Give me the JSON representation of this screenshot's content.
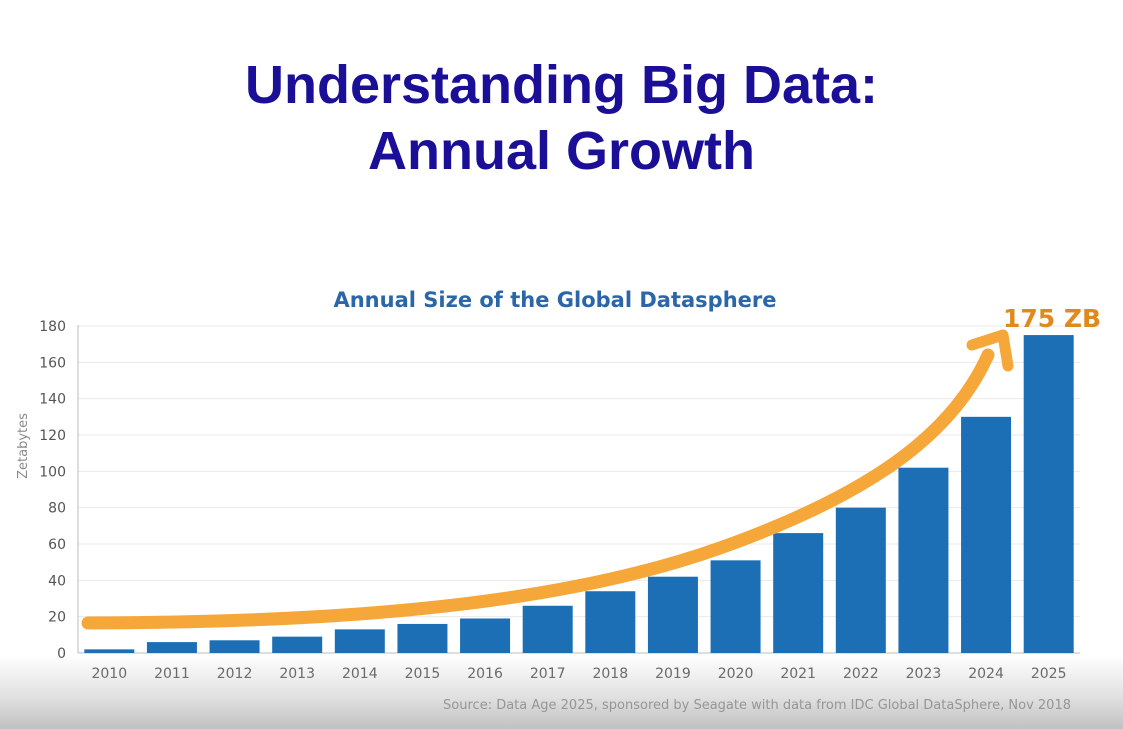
{
  "slide": {
    "title_line1": "Understanding Big Data:",
    "title_line2": "Annual Growth"
  },
  "chart_data": {
    "type": "bar",
    "title": "Annual Size of the Global Datasphere",
    "ylabel": "Zetabytes",
    "xlabel": "",
    "categories": [
      "2010",
      "2011",
      "2012",
      "2013",
      "2014",
      "2015",
      "2016",
      "2017",
      "2018",
      "2019",
      "2020",
      "2021",
      "2022",
      "2023",
      "2024",
      "2025"
    ],
    "values": [
      2,
      6,
      7,
      9,
      13,
      16,
      19,
      26,
      34,
      42,
      51,
      66,
      80,
      102,
      130,
      175
    ],
    "ylim": [
      0,
      180
    ],
    "yticks": [
      0,
      20,
      40,
      60,
      80,
      100,
      120,
      140,
      160,
      180
    ],
    "grid": true,
    "bar_color": "#1c6fb5",
    "trend_color": "#f6a73a",
    "annotation": {
      "text": "175 ZB",
      "color": "#e08a1e"
    },
    "source": "Source: Data Age 2025, sponsored by Seagate with data from IDC Global DataSphere, Nov 2018"
  }
}
